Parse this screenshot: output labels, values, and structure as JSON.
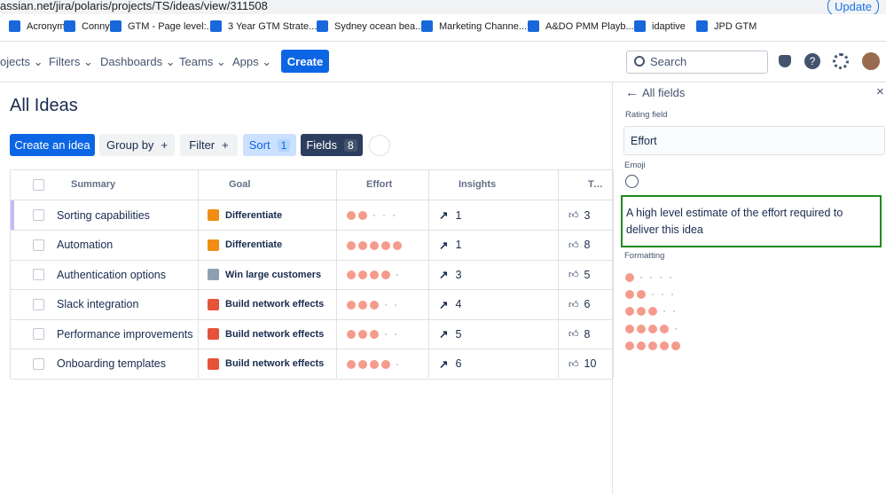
{
  "browser": {
    "url": "assian.net/jira/polaris/projects/TS/ideas/view/311508",
    "update": "Update"
  },
  "bookmarks": [
    "Acronyms",
    "Conny",
    "GTM - Page level:...",
    "3 Year GTM Strate...",
    "Sydney ocean bea...",
    "Marketing Channe...",
    "A&DO PMM Playb...",
    "idaptive",
    "JPD GTM"
  ],
  "nav": {
    "items": [
      "ojects",
      "Filters",
      "Dashboards",
      "Teams",
      "Apps"
    ],
    "create": "Create",
    "search": "Search"
  },
  "page": {
    "title": "All Ideas",
    "toolbar": {
      "create": "Create an idea",
      "group_by": "Group by",
      "filter": "Filter",
      "sort": "Sort",
      "sort_count": 1,
      "fields": "Fields",
      "fields_count": 8
    }
  },
  "table": {
    "columns": [
      "Summary",
      "Goal",
      "Effort",
      "Insights",
      "Team"
    ],
    "rating_max": 5,
    "rows": [
      {
        "summary": "Sorting capabilities",
        "goal": "Differentiate",
        "effort": 2,
        "insights": 1,
        "team": 3
      },
      {
        "summary": "Automation",
        "goal": "Differentiate",
        "effort": 5,
        "insights": 1,
        "team": 8
      },
      {
        "summary": "Authentication options",
        "goal": "Win large customers",
        "effort": 4,
        "insights": 3,
        "team": 5
      },
      {
        "summary": "Slack integration",
        "goal": "Build network effects",
        "effort": 3,
        "insights": 4,
        "team": 6
      },
      {
        "summary": "Performance improvements",
        "goal": "Build network effects",
        "effort": 3,
        "insights": 5,
        "team": 8
      },
      {
        "summary": "Onboarding templates",
        "goal": "Build network effects",
        "effort": 4,
        "insights": 6,
        "team": 10
      }
    ]
  },
  "panel": {
    "back": "All fields",
    "field_type": "Rating field",
    "name": "Effort",
    "emoji_label": "Emoji",
    "description": "A high level estimate of the effort required to deliver this idea",
    "formatting_label": "Formatting",
    "formatting_levels": [
      1,
      2,
      3,
      4,
      5
    ]
  }
}
